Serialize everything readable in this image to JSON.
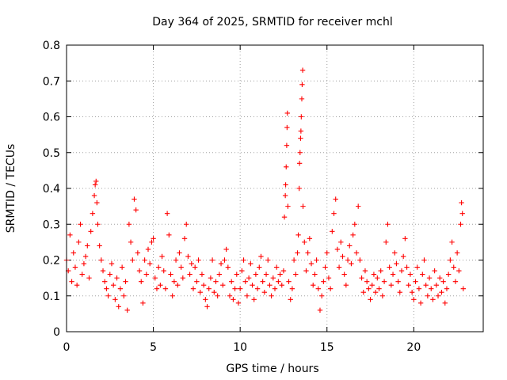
{
  "chart_data": {
    "type": "scatter",
    "title": "Day 364 of 2025, SRMTID for receiver mchl",
    "xlabel": "GPS time / hours",
    "ylabel": "SRMTID / TECUs",
    "xlim": [
      0,
      24
    ],
    "ylim": [
      0,
      0.8
    ],
    "xticks": [
      0,
      5,
      10,
      15,
      20
    ],
    "xtick_labels": [
      "0",
      "5",
      "10",
      "15",
      "20"
    ],
    "yticks": [
      0,
      0.1,
      0.2,
      0.3,
      0.4,
      0.5,
      0.6,
      0.7,
      0.8
    ],
    "ytick_labels": [
      "0",
      "0.1",
      "0.2",
      "0.3",
      "0.4",
      "0.5",
      "0.6",
      "0.7",
      "0.8"
    ],
    "grid": true,
    "marker": "plus",
    "color": "#ff0000",
    "series": [
      {
        "name": "SRMTID",
        "points": [
          [
            0.0,
            0.2
          ],
          [
            0.1,
            0.17
          ],
          [
            0.2,
            0.27
          ],
          [
            0.3,
            0.14
          ],
          [
            0.4,
            0.22
          ],
          [
            0.5,
            0.18
          ],
          [
            0.6,
            0.13
          ],
          [
            0.7,
            0.25
          ],
          [
            0.8,
            0.3
          ],
          [
            0.9,
            0.16
          ],
          [
            1.0,
            0.19
          ],
          [
            1.1,
            0.21
          ],
          [
            1.2,
            0.24
          ],
          [
            1.3,
            0.15
          ],
          [
            1.4,
            0.28
          ],
          [
            1.5,
            0.33
          ],
          [
            1.6,
            0.38
          ],
          [
            1.65,
            0.41
          ],
          [
            1.7,
            0.42
          ],
          [
            1.75,
            0.36
          ],
          [
            1.8,
            0.3
          ],
          [
            1.9,
            0.24
          ],
          [
            2.0,
            0.2
          ],
          [
            2.1,
            0.17
          ],
          [
            2.2,
            0.14
          ],
          [
            2.3,
            0.12
          ],
          [
            2.4,
            0.1
          ],
          [
            2.5,
            0.16
          ],
          [
            2.6,
            0.19
          ],
          [
            2.7,
            0.13
          ],
          [
            2.8,
            0.09
          ],
          [
            2.9,
            0.15
          ],
          [
            3.0,
            0.07
          ],
          [
            3.1,
            0.12
          ],
          [
            3.2,
            0.18
          ],
          [
            3.3,
            0.1
          ],
          [
            3.4,
            0.14
          ],
          [
            3.5,
            0.06
          ],
          [
            3.6,
            0.3
          ],
          [
            3.7,
            0.25
          ],
          [
            3.8,
            0.2
          ],
          [
            3.9,
            0.37
          ],
          [
            4.0,
            0.34
          ],
          [
            4.1,
            0.22
          ],
          [
            4.2,
            0.17
          ],
          [
            4.3,
            0.14
          ],
          [
            4.4,
            0.08
          ],
          [
            4.5,
            0.2
          ],
          [
            4.6,
            0.16
          ],
          [
            4.7,
            0.23
          ],
          [
            4.8,
            0.19
          ],
          [
            4.9,
            0.25
          ],
          [
            5.0,
            0.26
          ],
          [
            5.1,
            0.15
          ],
          [
            5.2,
            0.12
          ],
          [
            5.3,
            0.18
          ],
          [
            5.4,
            0.13
          ],
          [
            5.5,
            0.21
          ],
          [
            5.6,
            0.17
          ],
          [
            5.7,
            0.12
          ],
          [
            5.8,
            0.33
          ],
          [
            5.9,
            0.27
          ],
          [
            6.0,
            0.16
          ],
          [
            6.1,
            0.1
          ],
          [
            6.2,
            0.14
          ],
          [
            6.3,
            0.2
          ],
          [
            6.4,
            0.13
          ],
          [
            6.5,
            0.22
          ],
          [
            6.6,
            0.18
          ],
          [
            6.7,
            0.15
          ],
          [
            6.8,
            0.26
          ],
          [
            6.9,
            0.3
          ],
          [
            7.0,
            0.21
          ],
          [
            7.1,
            0.16
          ],
          [
            7.2,
            0.19
          ],
          [
            7.3,
            0.12
          ],
          [
            7.4,
            0.18
          ],
          [
            7.5,
            0.14
          ],
          [
            7.6,
            0.2
          ],
          [
            7.7,
            0.11
          ],
          [
            7.8,
            0.16
          ],
          [
            7.9,
            0.13
          ],
          [
            8.0,
            0.09
          ],
          [
            8.1,
            0.07
          ],
          [
            8.2,
            0.12
          ],
          [
            8.3,
            0.15
          ],
          [
            8.4,
            0.2
          ],
          [
            8.5,
            0.11
          ],
          [
            8.6,
            0.14
          ],
          [
            8.7,
            0.1
          ],
          [
            8.8,
            0.16
          ],
          [
            8.9,
            0.19
          ],
          [
            9.0,
            0.13
          ],
          [
            9.1,
            0.2
          ],
          [
            9.2,
            0.23
          ],
          [
            9.3,
            0.18
          ],
          [
            9.4,
            0.1
          ],
          [
            9.5,
            0.14
          ],
          [
            9.6,
            0.09
          ],
          [
            9.7,
            0.12
          ],
          [
            9.8,
            0.16
          ],
          [
            9.9,
            0.08
          ],
          [
            10.0,
            0.12
          ],
          [
            10.1,
            0.17
          ],
          [
            10.2,
            0.2
          ],
          [
            10.3,
            0.14
          ],
          [
            10.4,
            0.1
          ],
          [
            10.5,
            0.15
          ],
          [
            10.6,
            0.19
          ],
          [
            10.7,
            0.13
          ],
          [
            10.8,
            0.09
          ],
          [
            10.9,
            0.16
          ],
          [
            11.0,
            0.12
          ],
          [
            11.1,
            0.18
          ],
          [
            11.2,
            0.21
          ],
          [
            11.3,
            0.14
          ],
          [
            11.4,
            0.11
          ],
          [
            11.5,
            0.16
          ],
          [
            11.6,
            0.2
          ],
          [
            11.7,
            0.13
          ],
          [
            11.8,
            0.1
          ],
          [
            11.9,
            0.15
          ],
          [
            12.0,
            0.12
          ],
          [
            12.1,
            0.18
          ],
          [
            12.2,
            0.14
          ],
          [
            12.3,
            0.16
          ],
          [
            12.4,
            0.13
          ],
          [
            12.5,
            0.17
          ],
          [
            12.55,
            0.32
          ],
          [
            12.6,
            0.38
          ],
          [
            12.62,
            0.41
          ],
          [
            12.65,
            0.46
          ],
          [
            12.68,
            0.52
          ],
          [
            12.7,
            0.57
          ],
          [
            12.72,
            0.61
          ],
          [
            12.75,
            0.35
          ],
          [
            12.8,
            0.14
          ],
          [
            12.9,
            0.09
          ],
          [
            13.0,
            0.12
          ],
          [
            13.1,
            0.2
          ],
          [
            13.2,
            0.16
          ],
          [
            13.3,
            0.22
          ],
          [
            13.35,
            0.27
          ],
          [
            13.4,
            0.4
          ],
          [
            13.42,
            0.47
          ],
          [
            13.45,
            0.5
          ],
          [
            13.48,
            0.54
          ],
          [
            13.5,
            0.56
          ],
          [
            13.52,
            0.6
          ],
          [
            13.55,
            0.65
          ],
          [
            13.57,
            0.69
          ],
          [
            13.6,
            0.73
          ],
          [
            13.62,
            0.35
          ],
          [
            13.7,
            0.25
          ],
          [
            13.8,
            0.17
          ],
          [
            13.9,
            0.22
          ],
          [
            14.0,
            0.26
          ],
          [
            14.1,
            0.19
          ],
          [
            14.2,
            0.13
          ],
          [
            14.3,
            0.16
          ],
          [
            14.4,
            0.2
          ],
          [
            14.5,
            0.12
          ],
          [
            14.6,
            0.06
          ],
          [
            14.7,
            0.1
          ],
          [
            14.8,
            0.14
          ],
          [
            14.9,
            0.18
          ],
          [
            15.0,
            0.22
          ],
          [
            15.1,
            0.15
          ],
          [
            15.2,
            0.12
          ],
          [
            15.3,
            0.28
          ],
          [
            15.4,
            0.33
          ],
          [
            15.5,
            0.37
          ],
          [
            15.6,
            0.23
          ],
          [
            15.7,
            0.18
          ],
          [
            15.8,
            0.25
          ],
          [
            15.9,
            0.21
          ],
          [
            16.0,
            0.16
          ],
          [
            16.1,
            0.13
          ],
          [
            16.2,
            0.2
          ],
          [
            16.3,
            0.24
          ],
          [
            16.4,
            0.19
          ],
          [
            16.5,
            0.27
          ],
          [
            16.6,
            0.3
          ],
          [
            16.7,
            0.22
          ],
          [
            16.8,
            0.35
          ],
          [
            16.9,
            0.2
          ],
          [
            17.0,
            0.15
          ],
          [
            17.1,
            0.11
          ],
          [
            17.2,
            0.17
          ],
          [
            17.3,
            0.14
          ],
          [
            17.4,
            0.12
          ],
          [
            17.5,
            0.09
          ],
          [
            17.6,
            0.13
          ],
          [
            17.7,
            0.16
          ],
          [
            17.8,
            0.11
          ],
          [
            17.9,
            0.15
          ],
          [
            18.0,
            0.12
          ],
          [
            18.1,
            0.17
          ],
          [
            18.2,
            0.1
          ],
          [
            18.3,
            0.14
          ],
          [
            18.4,
            0.25
          ],
          [
            18.5,
            0.3
          ],
          [
            18.6,
            0.18
          ],
          [
            18.7,
            0.13
          ],
          [
            18.8,
            0.16
          ],
          [
            18.9,
            0.22
          ],
          [
            19.0,
            0.19
          ],
          [
            19.1,
            0.14
          ],
          [
            19.2,
            0.11
          ],
          [
            19.3,
            0.17
          ],
          [
            19.4,
            0.21
          ],
          [
            19.5,
            0.26
          ],
          [
            19.6,
            0.18
          ],
          [
            19.7,
            0.13
          ],
          [
            19.8,
            0.16
          ],
          [
            19.9,
            0.11
          ],
          [
            20.0,
            0.09
          ],
          [
            20.1,
            0.14
          ],
          [
            20.2,
            0.18
          ],
          [
            20.3,
            0.12
          ],
          [
            20.4,
            0.08
          ],
          [
            20.5,
            0.16
          ],
          [
            20.6,
            0.2
          ],
          [
            20.7,
            0.13
          ],
          [
            20.8,
            0.1
          ],
          [
            20.9,
            0.15
          ],
          [
            21.0,
            0.12
          ],
          [
            21.1,
            0.09
          ],
          [
            21.2,
            0.17
          ],
          [
            21.3,
            0.13
          ],
          [
            21.4,
            0.1
          ],
          [
            21.5,
            0.15
          ],
          [
            21.6,
            0.11
          ],
          [
            21.7,
            0.14
          ],
          [
            21.8,
            0.08
          ],
          [
            21.9,
            0.12
          ],
          [
            22.0,
            0.16
          ],
          [
            22.1,
            0.2
          ],
          [
            22.2,
            0.25
          ],
          [
            22.3,
            0.18
          ],
          [
            22.4,
            0.14
          ],
          [
            22.5,
            0.22
          ],
          [
            22.6,
            0.17
          ],
          [
            22.7,
            0.3
          ],
          [
            22.75,
            0.36
          ],
          [
            22.8,
            0.33
          ],
          [
            22.85,
            0.12
          ]
        ]
      }
    ]
  }
}
